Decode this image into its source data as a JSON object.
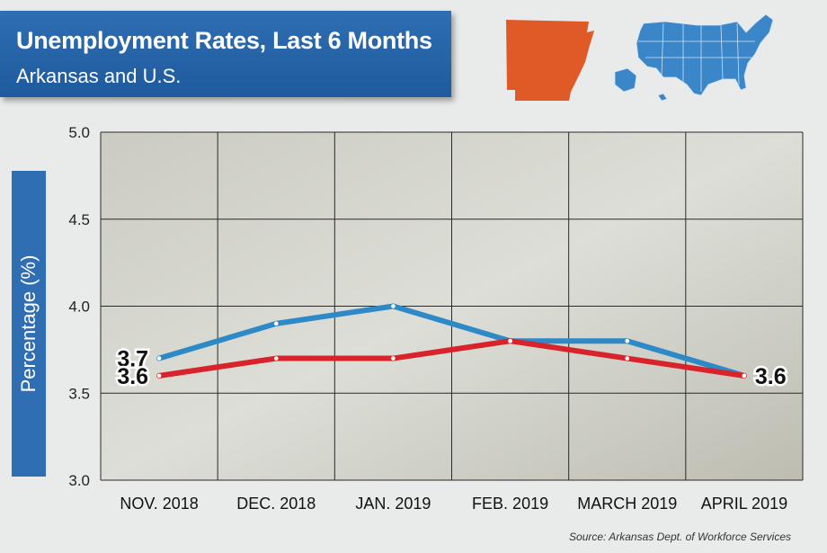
{
  "header": {
    "title": "Unemployment Rates, Last 6 Months",
    "subtitle": "Arkansas and U.S."
  },
  "maps": {
    "state_icon": "arkansas-map-icon",
    "country_icon": "us-map-icon",
    "state_color": "#e05a28",
    "country_color": "#3a86c8"
  },
  "chart_data": {
    "type": "line",
    "title": "Unemployment Rates, Last 6 Months",
    "subtitle": "Arkansas and U.S.",
    "xlabel": "",
    "ylabel": "Percentage (%)",
    "categories": [
      "NOV. 2018",
      "DEC. 2018",
      "JAN. 2019",
      "FEB. 2019",
      "MARCH 2019",
      "APRIL 2019"
    ],
    "ylim": [
      3.0,
      5.0
    ],
    "yticks": [
      "3.0",
      "3.5",
      "4.0",
      "4.5",
      "5.0"
    ],
    "grid": true,
    "series": [
      {
        "name": "U.S.",
        "color": "#2e8ac6",
        "values": [
          3.7,
          3.9,
          4.0,
          3.8,
          3.8,
          3.6
        ]
      },
      {
        "name": "Arkansas",
        "color": "#d8232a",
        "values": [
          3.6,
          3.7,
          3.7,
          3.8,
          3.7,
          3.6
        ]
      }
    ],
    "annotations": [
      {
        "text": "3.7",
        "series": 0,
        "index": 0,
        "side": "left"
      },
      {
        "text": "3.6",
        "series": 1,
        "index": 0,
        "side": "left"
      },
      {
        "text": "3.6",
        "series": 1,
        "index": 5,
        "side": "right"
      }
    ]
  },
  "footer": {
    "source": "Source: Arkansas Dept. of Workforce Services"
  }
}
